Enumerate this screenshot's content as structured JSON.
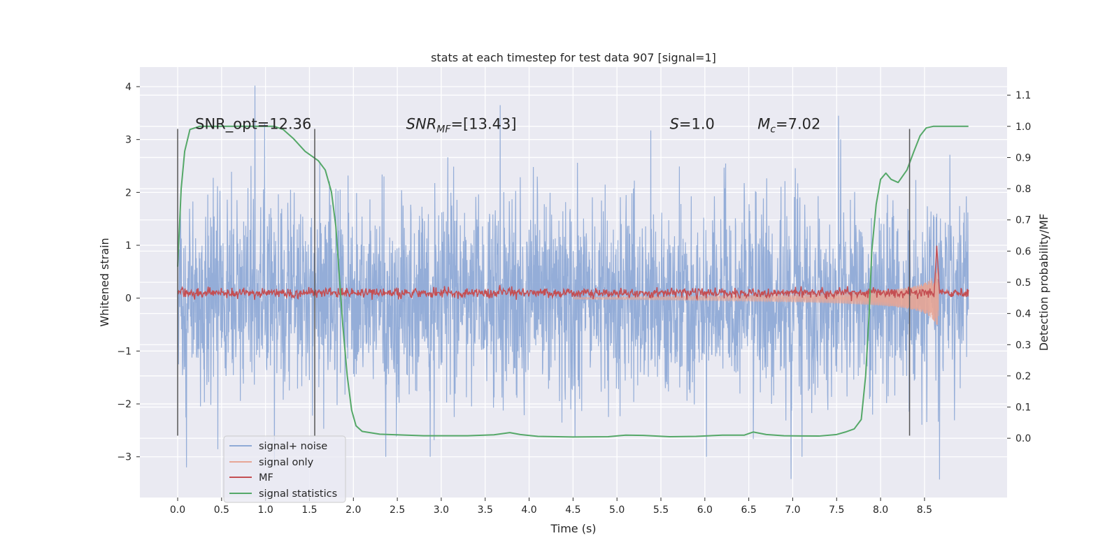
{
  "chart_data": {
    "type": "line",
    "title": "stats at each timestep for test data 907 [signal=1]",
    "xlabel": "Time (s)",
    "ylabel": "Whitened strain",
    "ylabel_right": "Detection probability/MF",
    "xlim": [
      -0.43,
      9.44
    ],
    "ylim": [
      -3.77,
      4.37
    ],
    "ylim_right": [
      -0.19,
      1.19
    ],
    "xticks": [
      "0.0",
      "0.5",
      "1.0",
      "1.5",
      "2.0",
      "2.5",
      "3.0",
      "3.5",
      "4.0",
      "4.5",
      "5.0",
      "5.5",
      "6.0",
      "6.5",
      "7.0",
      "7.5",
      "8.0",
      "8.5"
    ],
    "xtick_values": [
      0.0,
      0.5,
      1.0,
      1.5,
      2.0,
      2.5,
      3.0,
      3.5,
      4.0,
      4.5,
      5.0,
      5.5,
      6.0,
      6.5,
      7.0,
      7.5,
      8.0,
      8.5
    ],
    "yticks": [
      4,
      3,
      2,
      1,
      0,
      -1,
      -2,
      -3
    ],
    "yticks_text": [
      "4",
      "3",
      "2",
      "1",
      "0",
      "−1",
      "−2",
      "−3"
    ],
    "yticks_right": [
      1.1,
      1.0,
      0.9,
      0.8,
      0.7,
      0.6,
      0.5,
      0.4,
      0.3,
      0.2,
      0.1,
      0.0
    ],
    "yticks_right_text": [
      "1.1",
      "1.0",
      "0.9",
      "0.8",
      "0.7",
      "0.6",
      "0.5",
      "0.4",
      "0.3",
      "0.2",
      "0.1",
      "0.0"
    ],
    "grid": true,
    "legend_position": "lower-left",
    "annotations": [
      {
        "text": "SNR_opt=12.36",
        "x": 0.2,
        "y": 3.2
      },
      {
        "text": "SNR",
        "sub": "MF",
        "suffix": "=[13.43]",
        "italic": true,
        "x": 2.6,
        "y": 3.2
      },
      {
        "text": "S",
        "suffix": "=1.0",
        "italic": true,
        "x": 5.6,
        "y": 3.2
      },
      {
        "text": "M",
        "sub": "c",
        "suffix": "=7.02",
        "italic": true,
        "x": 6.6,
        "y": 3.2
      }
    ],
    "vlines": [
      0.0,
      1.56,
      8.33
    ],
    "vline_range": [
      -2.6,
      3.2
    ],
    "series": [
      {
        "name": "signal+ noise",
        "color": "#8faad6",
        "x_range": [
          0.0,
          9.0
        ],
        "std": 0.95,
        "spikes": [
          [
            0.88,
            4.02
          ],
          [
            3.67,
            3.65
          ],
          [
            7.52,
            3.45
          ],
          [
            1.1,
            -3.2
          ],
          [
            0.1,
            -3.2
          ],
          [
            8.67,
            -3.43
          ],
          [
            6.98,
            -3.42
          ]
        ]
      },
      {
        "name": "signal only",
        "color": "#e7a595",
        "x_range": [
          4.5,
          8.66
        ],
        "amplitude_end": 1.3,
        "peak_time": 8.65
      },
      {
        "name": "MF",
        "color": "#c44e52",
        "x_range": [
          0.0,
          9.0
        ],
        "level": 0.1,
        "peak": [
          8.64,
          1.0
        ]
      },
      {
        "name": "signal statistics",
        "color": "#55a868",
        "axis": "right",
        "points": [
          [
            0.0,
            0.55
          ],
          [
            0.04,
            0.8
          ],
          [
            0.08,
            0.92
          ],
          [
            0.14,
            0.99
          ],
          [
            0.25,
            1.0
          ],
          [
            0.5,
            1.0
          ],
          [
            0.9,
            1.0
          ],
          [
            1.1,
            1.0
          ],
          [
            1.2,
            0.99
          ],
          [
            1.32,
            0.96
          ],
          [
            1.45,
            0.92
          ],
          [
            1.6,
            0.89
          ],
          [
            1.68,
            0.86
          ],
          [
            1.75,
            0.79
          ],
          [
            1.8,
            0.68
          ],
          [
            1.84,
            0.52
          ],
          [
            1.88,
            0.36
          ],
          [
            1.93,
            0.2
          ],
          [
            1.98,
            0.09
          ],
          [
            2.03,
            0.04
          ],
          [
            2.1,
            0.022
          ],
          [
            2.3,
            0.013
          ],
          [
            2.8,
            0.008
          ],
          [
            3.3,
            0.008
          ],
          [
            3.6,
            0.011
          ],
          [
            3.78,
            0.018
          ],
          [
            3.9,
            0.012
          ],
          [
            4.1,
            0.006
          ],
          [
            4.5,
            0.004
          ],
          [
            4.9,
            0.005
          ],
          [
            5.1,
            0.01
          ],
          [
            5.3,
            0.009
          ],
          [
            5.6,
            0.005
          ],
          [
            5.9,
            0.006
          ],
          [
            6.2,
            0.01
          ],
          [
            6.45,
            0.01
          ],
          [
            6.55,
            0.02
          ],
          [
            6.7,
            0.012
          ],
          [
            6.9,
            0.008
          ],
          [
            7.3,
            0.007
          ],
          [
            7.5,
            0.012
          ],
          [
            7.6,
            0.02
          ],
          [
            7.7,
            0.03
          ],
          [
            7.78,
            0.06
          ],
          [
            7.83,
            0.2
          ],
          [
            7.87,
            0.4
          ],
          [
            7.9,
            0.6
          ],
          [
            7.95,
            0.75
          ],
          [
            8.0,
            0.83
          ],
          [
            8.06,
            0.85
          ],
          [
            8.12,
            0.83
          ],
          [
            8.2,
            0.82
          ],
          [
            8.3,
            0.86
          ],
          [
            8.38,
            0.92
          ],
          [
            8.45,
            0.97
          ],
          [
            8.52,
            0.995
          ],
          [
            8.6,
            1.0
          ],
          [
            9.0,
            1.0
          ]
        ]
      }
    ]
  }
}
